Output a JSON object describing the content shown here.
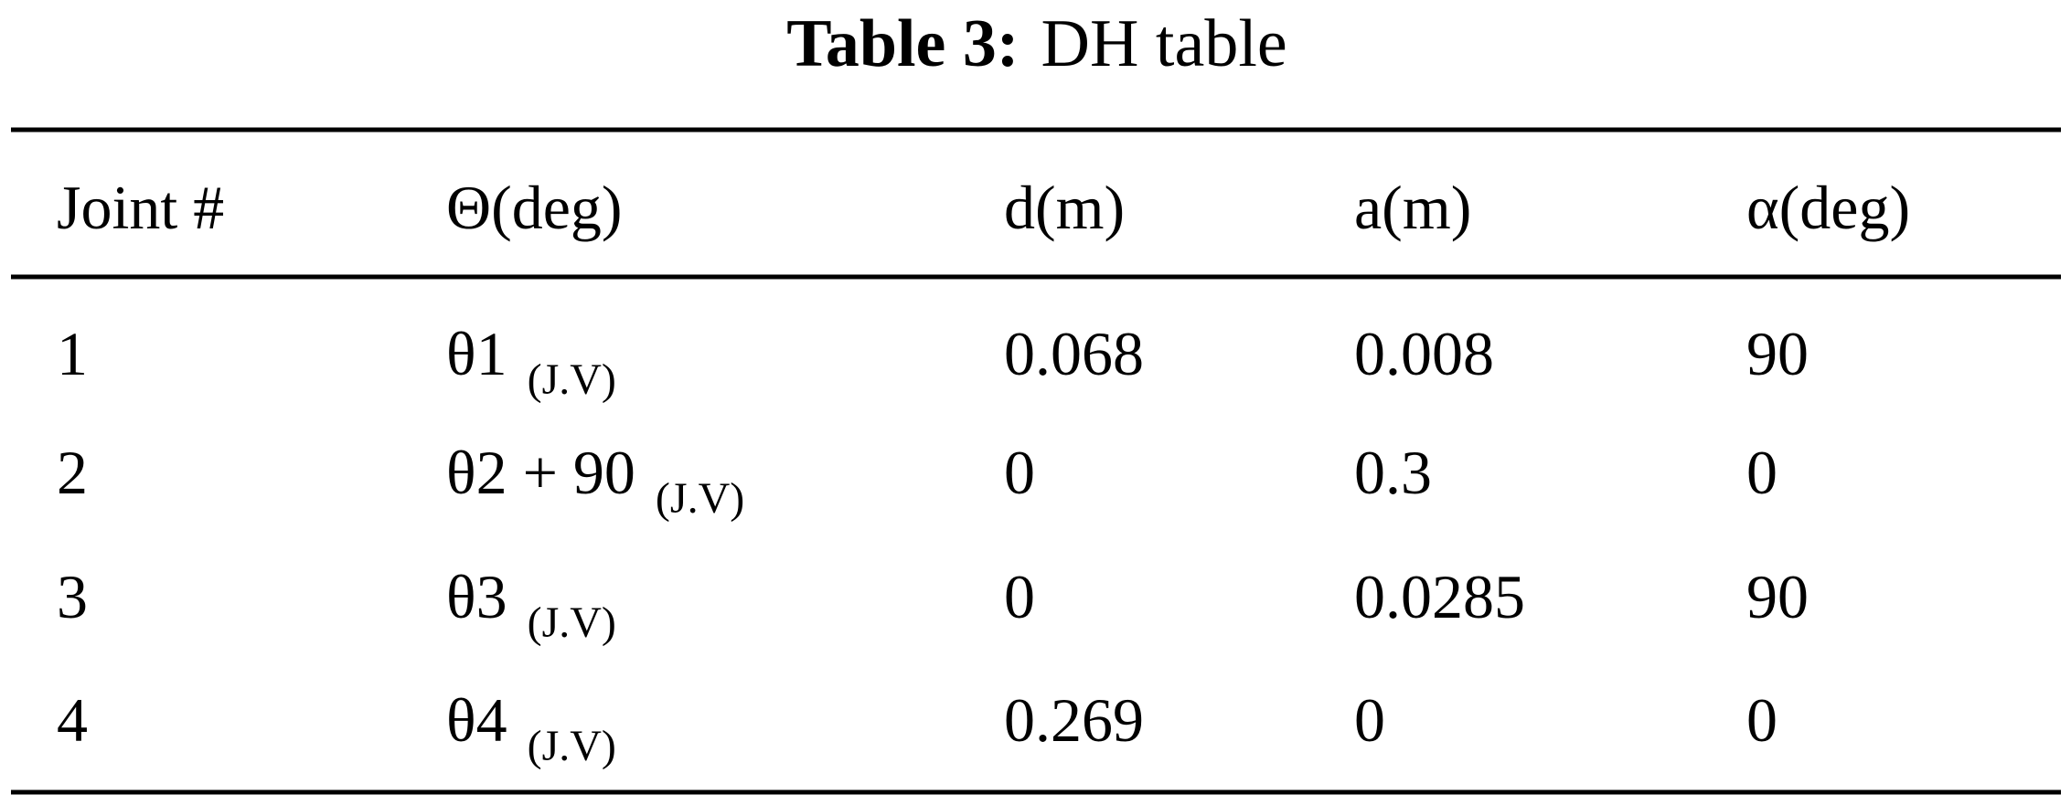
{
  "caption": {
    "label": "Table 3:",
    "text": "DH table"
  },
  "table": {
    "header": [
      "Joint #",
      "Θ(deg)",
      "d(m)",
      "a(m)",
      "α(deg)"
    ],
    "rows": [
      [
        "1",
        {
          "main": "θ1",
          "sub": "(J.V)"
        },
        "0.068",
        "0.008",
        "90"
      ],
      [
        "2",
        {
          "main": "θ2 + 90",
          "sub": "(J.V)"
        },
        "0",
        "0.3",
        "0"
      ],
      [
        "3",
        {
          "main": "θ3",
          "sub": "(J.V)"
        },
        "0",
        "0.0285",
        "90"
      ],
      [
        "4",
        {
          "main": "θ4",
          "sub": "(J.V)"
        },
        "0.269",
        "0",
        "0"
      ]
    ]
  }
}
